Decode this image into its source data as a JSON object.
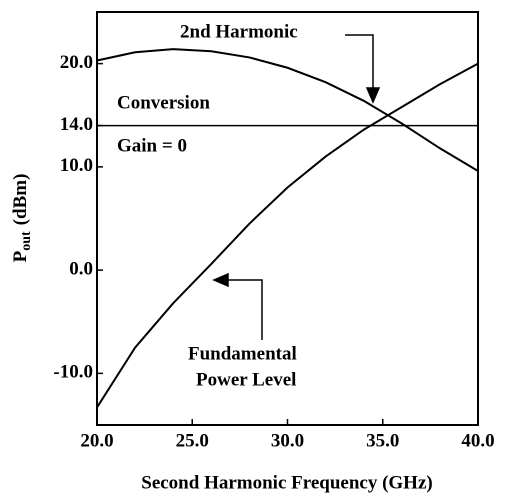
{
  "chart_data": {
    "type": "line",
    "xlabel": "Second Harmonic Frequency (GHz)",
    "ylabel": "P",
    "ylabel_sub": "out",
    "ylabel_unit": "(dBm)",
    "x": [
      20,
      22,
      24,
      26,
      28,
      30,
      32,
      34,
      36,
      38,
      40
    ],
    "series": [
      {
        "name": "2nd Harmonic",
        "color": "#000000",
        "values": [
          20.3,
          21.1,
          21.4,
          21.2,
          20.6,
          19.6,
          18.2,
          16.4,
          14.2,
          11.8,
          9.6
        ]
      },
      {
        "name": "Fundamental Power Level",
        "color": "#000000",
        "values": [
          -13.3,
          -7.5,
          -3.2,
          0.6,
          4.5,
          8,
          11,
          13.6,
          15.8,
          18,
          20
        ]
      }
    ],
    "reference_line": 14,
    "annotations": [
      "2nd Harmonic",
      "Conversion",
      "Gain = 0",
      "Fundamental",
      "Power Level"
    ],
    "xlim": [
      20,
      40
    ],
    "xticks": [
      {
        "value": 20,
        "label": "20.0"
      },
      {
        "value": 25,
        "label": "25.0"
      },
      {
        "value": 30,
        "label": "30.0"
      },
      {
        "value": 35,
        "label": "35.0"
      },
      {
        "value": 40,
        "label": "40.0"
      }
    ],
    "ylim": [
      -15,
      25
    ],
    "yticks": [
      {
        "value": -10,
        "label": "-10.0"
      },
      {
        "value": 0,
        "label": "0.0"
      },
      {
        "value": 10,
        "label": "10.0"
      },
      {
        "value": 14,
        "label": "14.0"
      },
      {
        "value": 20,
        "label": "20.0"
      }
    ]
  }
}
